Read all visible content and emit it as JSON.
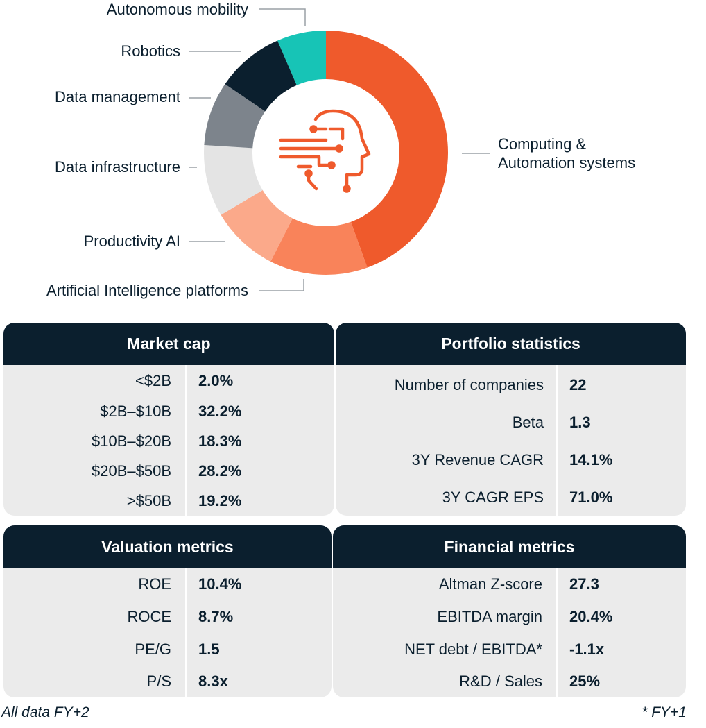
{
  "chart_data": {
    "type": "pie",
    "style": "donut",
    "categories": [
      "Computing & Automation systems",
      "Artificial Intelligence platforms",
      "Productivity AI",
      "Data infrastructure",
      "Data management",
      "Robotics",
      "Autonomous mobility"
    ],
    "values": [
      44.5,
      13.0,
      9.0,
      9.5,
      8.5,
      9.0,
      6.5
    ],
    "colors": [
      "#ef5a2c",
      "#f9835a",
      "#fba98a",
      "#e4e4e4",
      "#7d848c",
      "#0b1f2e",
      "#17c4b6"
    ],
    "center_icon": "ai-head-icon",
    "legend_placement": "leader-lines"
  },
  "labels": {
    "computing": [
      "Computing &",
      "Automation systems"
    ],
    "ai_platforms": "Artificial Intelligence platforms",
    "productivity": "Productivity AI",
    "data_infra": "Data infrastructure",
    "data_mgmt": "Data management",
    "robotics": "Robotics",
    "autonomous": "Autonomous mobility"
  },
  "market_cap": {
    "title": "Market cap",
    "rows": [
      {
        "label": "<$2B",
        "value": "2.0%"
      },
      {
        "label": "$2B–$10B",
        "value": "32.2%"
      },
      {
        "label": "$10B–$20B",
        "value": "18.3%"
      },
      {
        "label": "$20B–$50B",
        "value": "28.2%"
      },
      {
        "label": ">$50B",
        "value": "19.2%"
      }
    ]
  },
  "portfolio": {
    "title": "Portfolio statistics",
    "rows": [
      {
        "label": "Number of companies",
        "value": "22"
      },
      {
        "label": "Beta",
        "value": "1.3"
      },
      {
        "label": "3Y Revenue CAGR",
        "value": "14.1%"
      },
      {
        "label": "3Y CAGR EPS",
        "value": "71.0%"
      }
    ]
  },
  "valuation": {
    "title": "Valuation metrics",
    "rows": [
      {
        "label": "ROE",
        "value": "10.4%"
      },
      {
        "label": "ROCE",
        "value": "8.7%"
      },
      {
        "label": "PE/G",
        "value": "1.5"
      },
      {
        "label": "P/S",
        "value": "8.3x"
      }
    ]
  },
  "financial": {
    "title": "Financial metrics",
    "rows": [
      {
        "label": "Altman Z-score",
        "value": "27.3"
      },
      {
        "label": "EBITDA margin",
        "value": "20.4%"
      },
      {
        "label": "NET debt / EBITDA*",
        "value": "-1.1x"
      },
      {
        "label": "R&D / Sales",
        "value": "25%"
      }
    ]
  },
  "footnotes": {
    "left": "All data FY+2",
    "right": "* FY+1"
  }
}
